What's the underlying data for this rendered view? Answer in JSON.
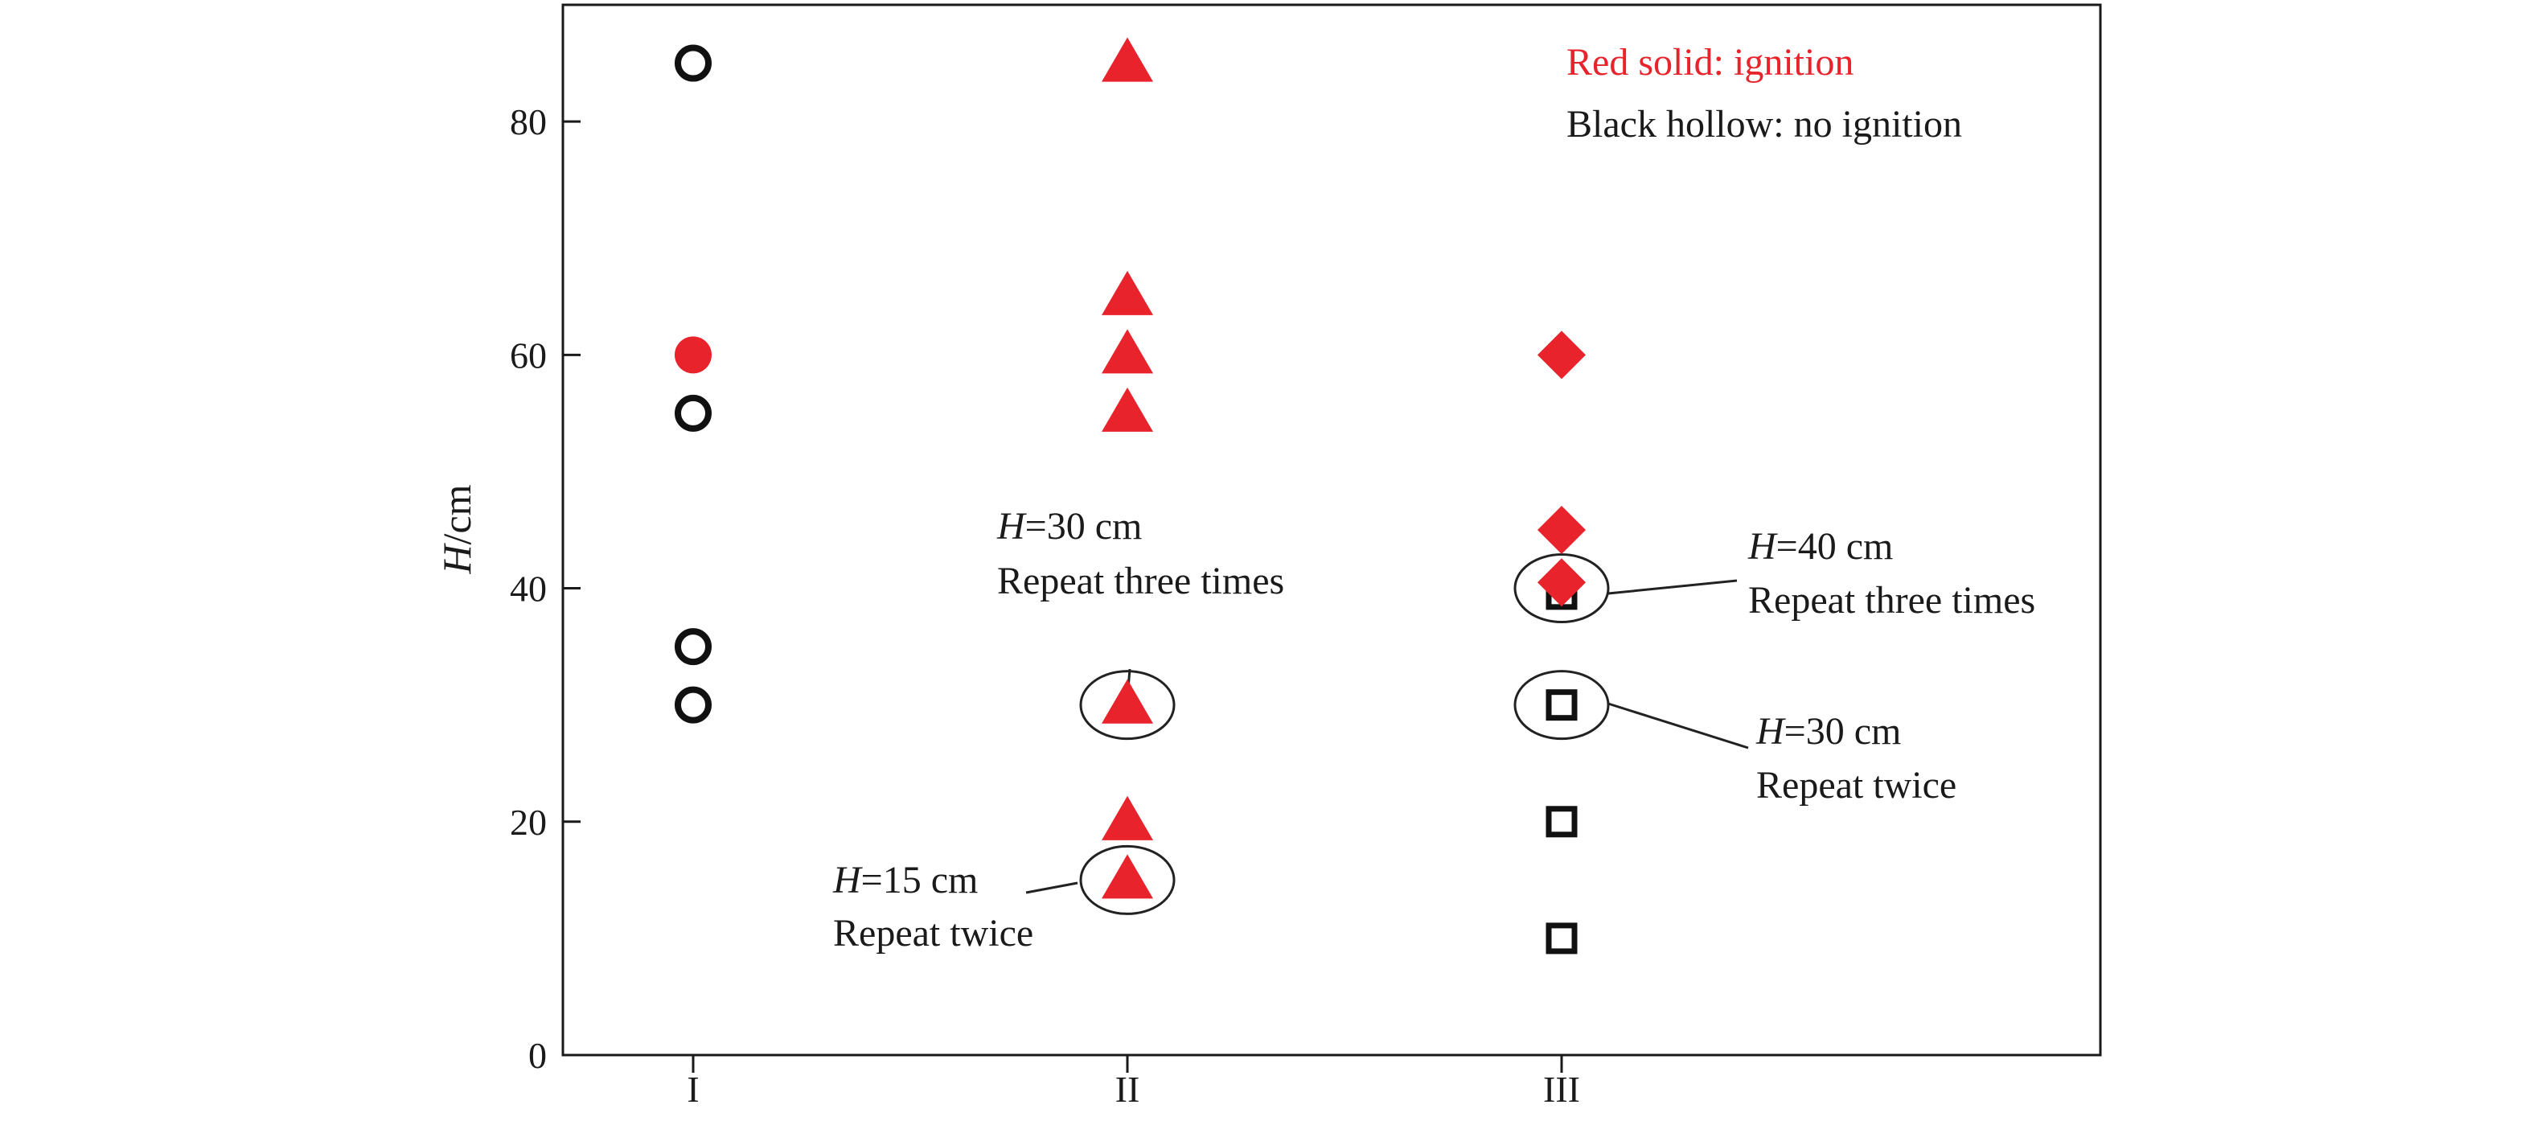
{
  "chart_data": {
    "type": "scatter",
    "title": "",
    "ylabel": {
      "italic": "H",
      "rest": "/cm"
    },
    "xlabel": "",
    "ylim": [
      0,
      90
    ],
    "yticks": [
      0,
      20,
      40,
      60,
      80
    ],
    "categories": [
      "I",
      "II",
      "III"
    ],
    "grid": false,
    "colors": {
      "ignition": "#e8232b",
      "no_ignition": "#111111"
    },
    "legend": {
      "placement": "top-right",
      "entries": [
        {
          "label": "Red solid: ignition",
          "color": "#e8232b"
        },
        {
          "label": "Black hollow: no ignition",
          "color": "#111111"
        }
      ]
    },
    "points": [
      {
        "category": "I",
        "y": 85,
        "marker": "circle",
        "ignition": false
      },
      {
        "category": "I",
        "y": 60,
        "marker": "circle",
        "ignition": true
      },
      {
        "category": "I",
        "y": 55,
        "marker": "circle",
        "ignition": false
      },
      {
        "category": "I",
        "y": 35,
        "marker": "circle",
        "ignition": false
      },
      {
        "category": "I",
        "y": 30,
        "marker": "circle",
        "ignition": false
      },
      {
        "category": "II",
        "y": 85,
        "marker": "triangle",
        "ignition": true
      },
      {
        "category": "II",
        "y": 65,
        "marker": "triangle",
        "ignition": true
      },
      {
        "category": "II",
        "y": 60,
        "marker": "triangle",
        "ignition": true
      },
      {
        "category": "II",
        "y": 55,
        "marker": "triangle",
        "ignition": true
      },
      {
        "category": "II",
        "y": 30,
        "marker": "triangle",
        "ignition": true
      },
      {
        "category": "II",
        "y": 20,
        "marker": "triangle",
        "ignition": true
      },
      {
        "category": "II",
        "y": 15,
        "marker": "triangle",
        "ignition": true
      },
      {
        "category": "III",
        "y": 60,
        "marker": "diamond",
        "ignition": true
      },
      {
        "category": "III",
        "y": 45,
        "marker": "diamond",
        "ignition": true
      },
      {
        "category": "III",
        "y": 39.5,
        "marker": "square",
        "ignition": false
      },
      {
        "category": "III",
        "y": 40.5,
        "marker": "diamond",
        "ignition": true
      },
      {
        "category": "III",
        "y": 30,
        "marker": "square",
        "ignition": false
      },
      {
        "category": "III",
        "y": 20,
        "marker": "square",
        "ignition": false
      },
      {
        "category": "III",
        "y": 10,
        "marker": "square",
        "ignition": false
      }
    ],
    "annotations": [
      {
        "category": "II",
        "y": 30,
        "h_value": "=30 cm",
        "note": "Repeat three times"
      },
      {
        "category": "II",
        "y": 15,
        "h_value": "=15 cm",
        "note": "Repeat twice"
      },
      {
        "category": "III",
        "y": 40,
        "h_value": "=40 cm",
        "note": "Repeat three times"
      },
      {
        "category": "III",
        "y": 30,
        "h_value": "=30 cm",
        "note": "Repeat twice"
      }
    ]
  }
}
